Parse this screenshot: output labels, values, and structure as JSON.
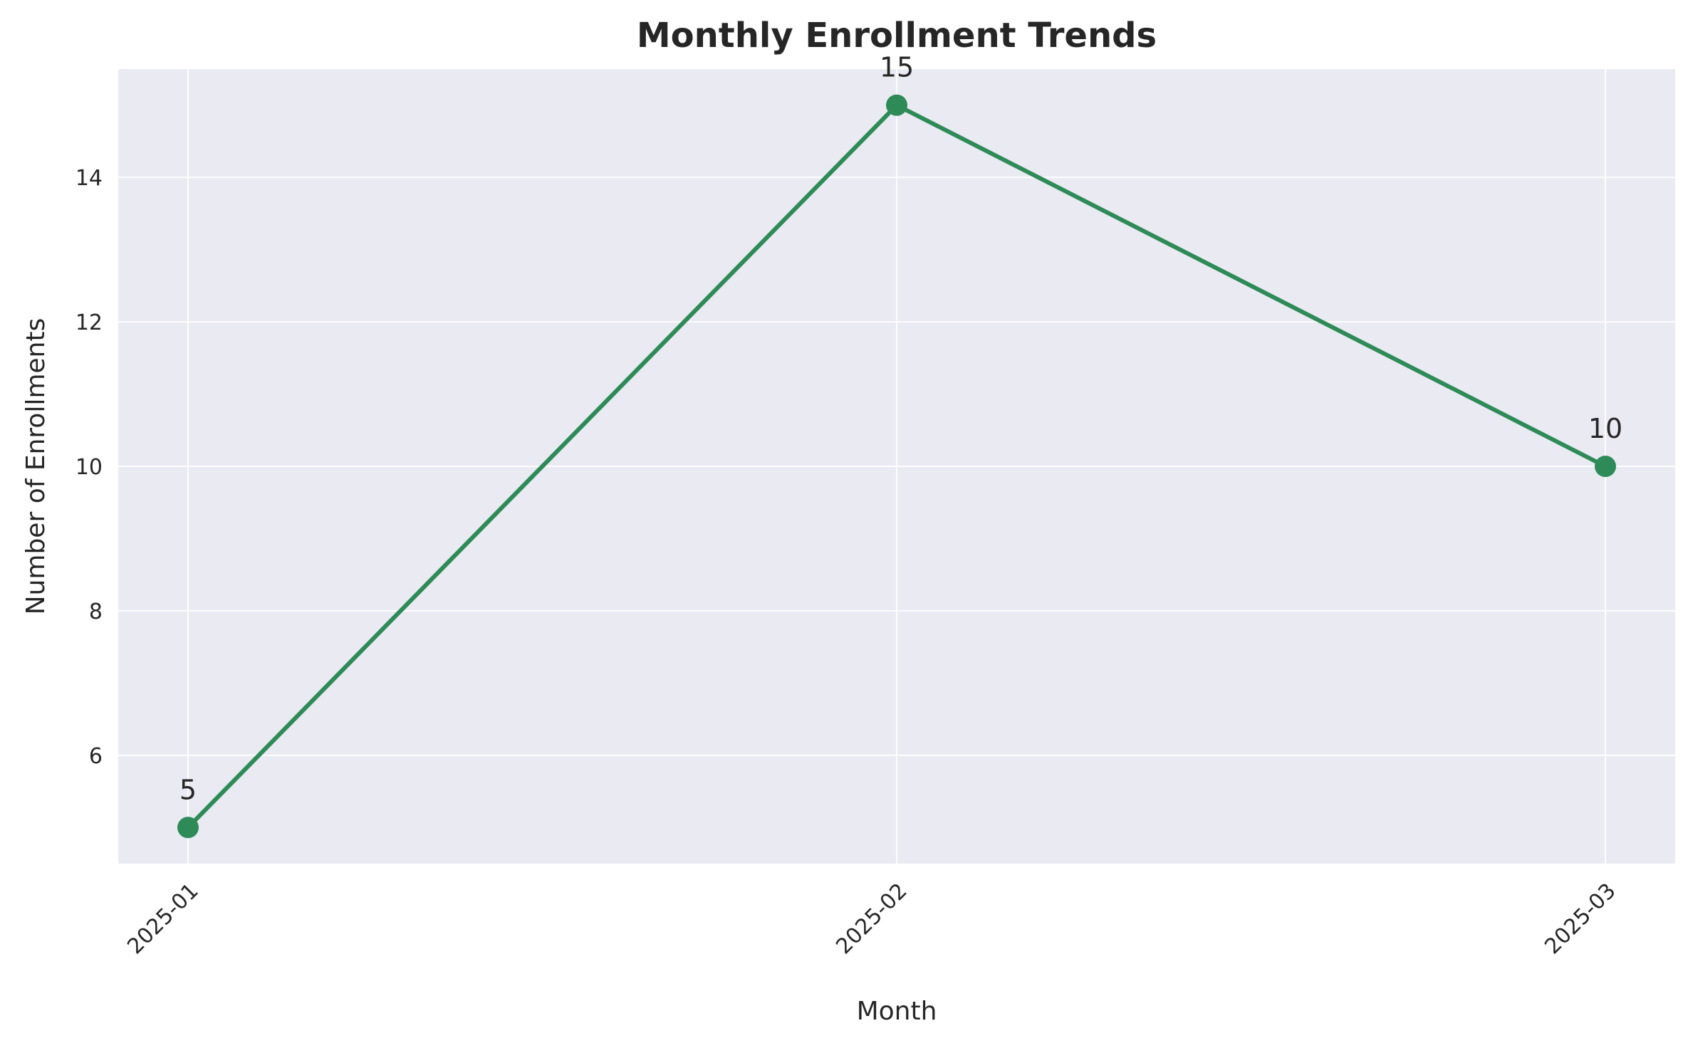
{
  "chart_data": {
    "type": "line",
    "title": "Monthly Enrollment Trends",
    "xlabel": "Month",
    "ylabel": "Number of Enrollments",
    "categories": [
      "2025-01",
      "2025-02",
      "2025-03"
    ],
    "series": [
      {
        "values": [
          5,
          15,
          10
        ],
        "color": "#2e8b57"
      }
    ],
    "data_labels": [
      "5",
      "15",
      "10"
    ],
    "ylim": [
      4.5,
      15.5
    ],
    "yticks": [
      6,
      8,
      10,
      12,
      14
    ],
    "grid": true,
    "x_tick_rotation_deg": 45,
    "colors": {
      "plot_background": "#eaeaf2",
      "grid": "#ffffff",
      "line": "#2e8b57",
      "text": "#262626"
    }
  }
}
